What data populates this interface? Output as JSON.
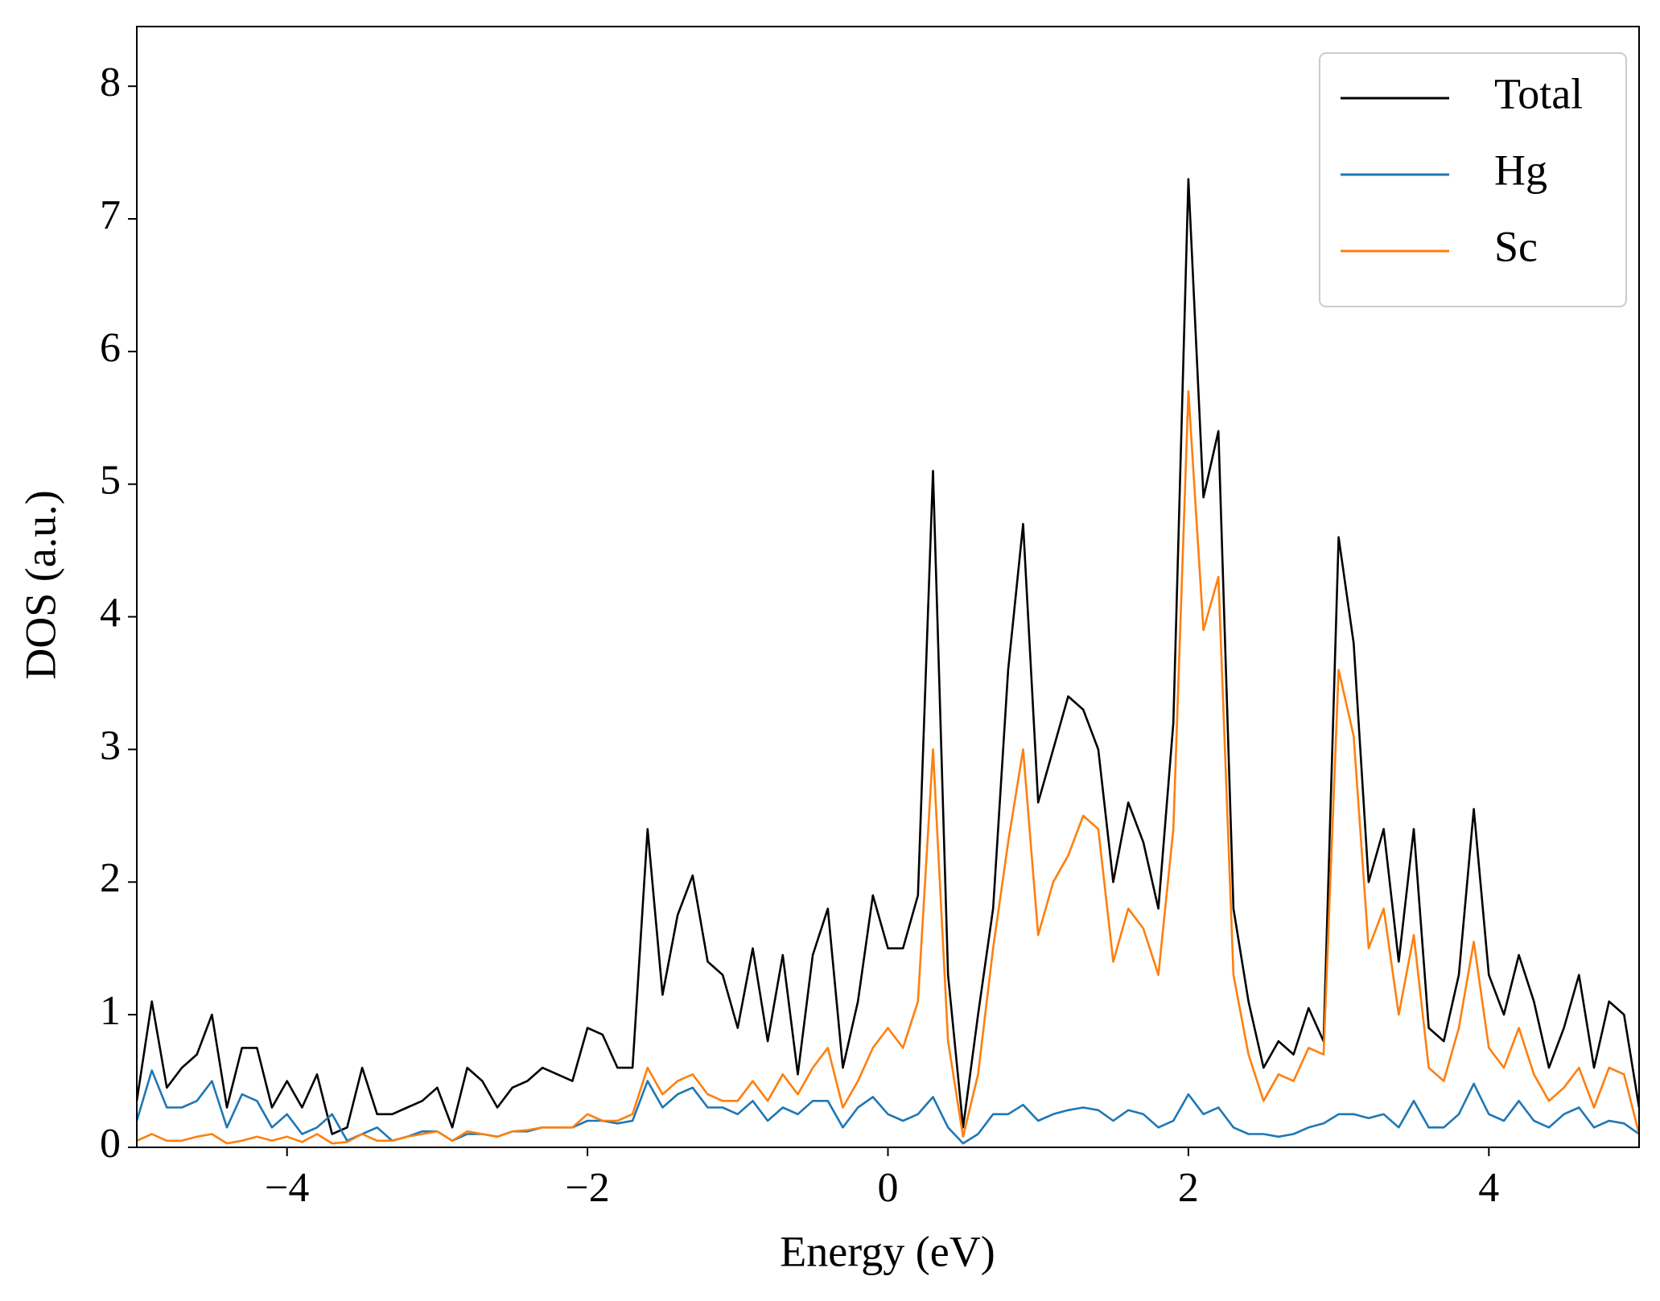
{
  "chart_data": {
    "type": "line",
    "xlabel": "Energy (eV)",
    "ylabel": "DOS (a.u.)",
    "xlim": [
      -5,
      5
    ],
    "ylim": [
      0,
      8.45
    ],
    "xticks": [
      {
        "value": -4,
        "label": "−4"
      },
      {
        "value": -2,
        "label": "−2"
      },
      0,
      2,
      4
    ],
    "yticks": [
      0,
      1,
      2,
      3,
      4,
      5,
      6,
      7,
      8
    ],
    "grid": false,
    "legend": "upper right",
    "x": [
      -5,
      -4.9,
      -4.8,
      -4.7,
      -4.6,
      -4.5,
      -4.4,
      -4.3,
      -4.2,
      -4.1,
      -4,
      -3.9,
      -3.8,
      -3.7,
      -3.6,
      -3.5,
      -3.4,
      -3.3,
      -3.2,
      -3.1,
      -3,
      -2.9,
      -2.8,
      -2.7,
      -2.6,
      -2.5,
      -2.4,
      -2.3,
      -2.2,
      -2.1,
      -2,
      -1.9,
      -1.8,
      -1.7,
      -1.6,
      -1.5,
      -1.4,
      -1.3,
      -1.2,
      -1.1,
      -1,
      -0.9,
      -0.8,
      -0.7,
      -0.6,
      -0.5,
      -0.4,
      -0.3,
      -0.2,
      -0.1,
      0,
      0.1,
      0.2,
      0.3,
      0.4,
      0.5,
      0.6,
      0.7,
      0.8,
      0.9,
      1,
      1.1,
      1.2,
      1.3,
      1.4,
      1.5,
      1.6,
      1.7,
      1.8,
      1.9,
      2,
      2.1,
      2.2,
      2.3,
      2.4,
      2.5,
      2.6,
      2.7,
      2.8,
      2.9,
      3,
      3.1,
      3.2,
      3.3,
      3.4,
      3.5,
      3.6,
      3.7,
      3.8,
      3.9,
      4,
      4.1,
      4.2,
      4.3,
      4.4,
      4.5,
      4.6,
      4.7,
      4.8,
      4.9,
      5
    ],
    "series": [
      {
        "name": "Total",
        "color": "#000000",
        "values": [
          0.35,
          1.1,
          0.45,
          0.6,
          0.7,
          1.0,
          0.3,
          0.75,
          0.75,
          0.3,
          0.5,
          0.3,
          0.55,
          0.1,
          0.15,
          0.6,
          0.25,
          0.25,
          0.3,
          0.35,
          0.45,
          0.15,
          0.6,
          0.5,
          0.3,
          0.45,
          0.5,
          0.6,
          0.55,
          0.5,
          0.9,
          0.85,
          0.6,
          0.6,
          2.4,
          1.15,
          1.75,
          2.05,
          1.4,
          1.3,
          0.9,
          1.5,
          0.8,
          1.45,
          0.55,
          1.45,
          1.8,
          0.6,
          1.1,
          1.9,
          1.5,
          1.5,
          1.9,
          5.1,
          1.3,
          0.15,
          1.0,
          1.8,
          3.6,
          4.7,
          2.6,
          3.0,
          3.4,
          3.3,
          3.0,
          2.0,
          2.6,
          2.3,
          1.8,
          3.2,
          7.3,
          4.9,
          5.4,
          1.8,
          1.1,
          0.6,
          0.8,
          0.7,
          1.05,
          0.8,
          4.6,
          3.8,
          2.0,
          2.4,
          1.4,
          2.4,
          0.9,
          0.8,
          1.3,
          2.55,
          1.3,
          1.0,
          1.45,
          1.1,
          0.6,
          0.9,
          1.3,
          0.6,
          1.1,
          1.0,
          0.3
        ]
      },
      {
        "name": "Hg",
        "color": "#1f77b4",
        "values": [
          0.2,
          0.58,
          0.3,
          0.3,
          0.35,
          0.5,
          0.15,
          0.4,
          0.35,
          0.15,
          0.25,
          0.1,
          0.15,
          0.25,
          0.05,
          0.1,
          0.15,
          0.05,
          0.08,
          0.12,
          0.12,
          0.05,
          0.1,
          0.1,
          0.08,
          0.12,
          0.12,
          0.15,
          0.15,
          0.15,
          0.2,
          0.2,
          0.18,
          0.2,
          0.5,
          0.3,
          0.4,
          0.45,
          0.3,
          0.3,
          0.25,
          0.35,
          0.2,
          0.3,
          0.25,
          0.35,
          0.35,
          0.15,
          0.3,
          0.38,
          0.25,
          0.2,
          0.25,
          0.38,
          0.15,
          0.03,
          0.1,
          0.25,
          0.25,
          0.32,
          0.2,
          0.25,
          0.28,
          0.3,
          0.28,
          0.2,
          0.28,
          0.25,
          0.15,
          0.2,
          0.4,
          0.25,
          0.3,
          0.15,
          0.1,
          0.1,
          0.08,
          0.1,
          0.15,
          0.18,
          0.25,
          0.25,
          0.22,
          0.25,
          0.15,
          0.35,
          0.15,
          0.15,
          0.25,
          0.48,
          0.25,
          0.2,
          0.35,
          0.2,
          0.15,
          0.25,
          0.3,
          0.15,
          0.2,
          0.18,
          0.1
        ]
      },
      {
        "name": "Sc",
        "color": "#ff7f0e",
        "values": [
          0.05,
          0.1,
          0.05,
          0.05,
          0.08,
          0.1,
          0.03,
          0.05,
          0.08,
          0.05,
          0.08,
          0.04,
          0.1,
          0.03,
          0.04,
          0.1,
          0.05,
          0.05,
          0.08,
          0.1,
          0.12,
          0.05,
          0.12,
          0.1,
          0.08,
          0.12,
          0.13,
          0.15,
          0.15,
          0.15,
          0.25,
          0.2,
          0.2,
          0.25,
          0.6,
          0.4,
          0.5,
          0.55,
          0.4,
          0.35,
          0.35,
          0.5,
          0.35,
          0.55,
          0.4,
          0.6,
          0.75,
          0.3,
          0.5,
          0.75,
          0.9,
          0.75,
          1.1,
          3.0,
          0.8,
          0.08,
          0.55,
          1.5,
          2.3,
          3.0,
          1.6,
          2.0,
          2.2,
          2.5,
          2.4,
          1.4,
          1.8,
          1.65,
          1.3,
          2.4,
          5.7,
          3.9,
          4.3,
          1.3,
          0.7,
          0.35,
          0.55,
          0.5,
          0.75,
          0.7,
          3.6,
          3.1,
          1.5,
          1.8,
          1.0,
          1.6,
          0.6,
          0.5,
          0.9,
          1.55,
          0.75,
          0.6,
          0.9,
          0.55,
          0.35,
          0.45,
          0.6,
          0.3,
          0.6,
          0.55,
          0.1
        ]
      }
    ]
  }
}
